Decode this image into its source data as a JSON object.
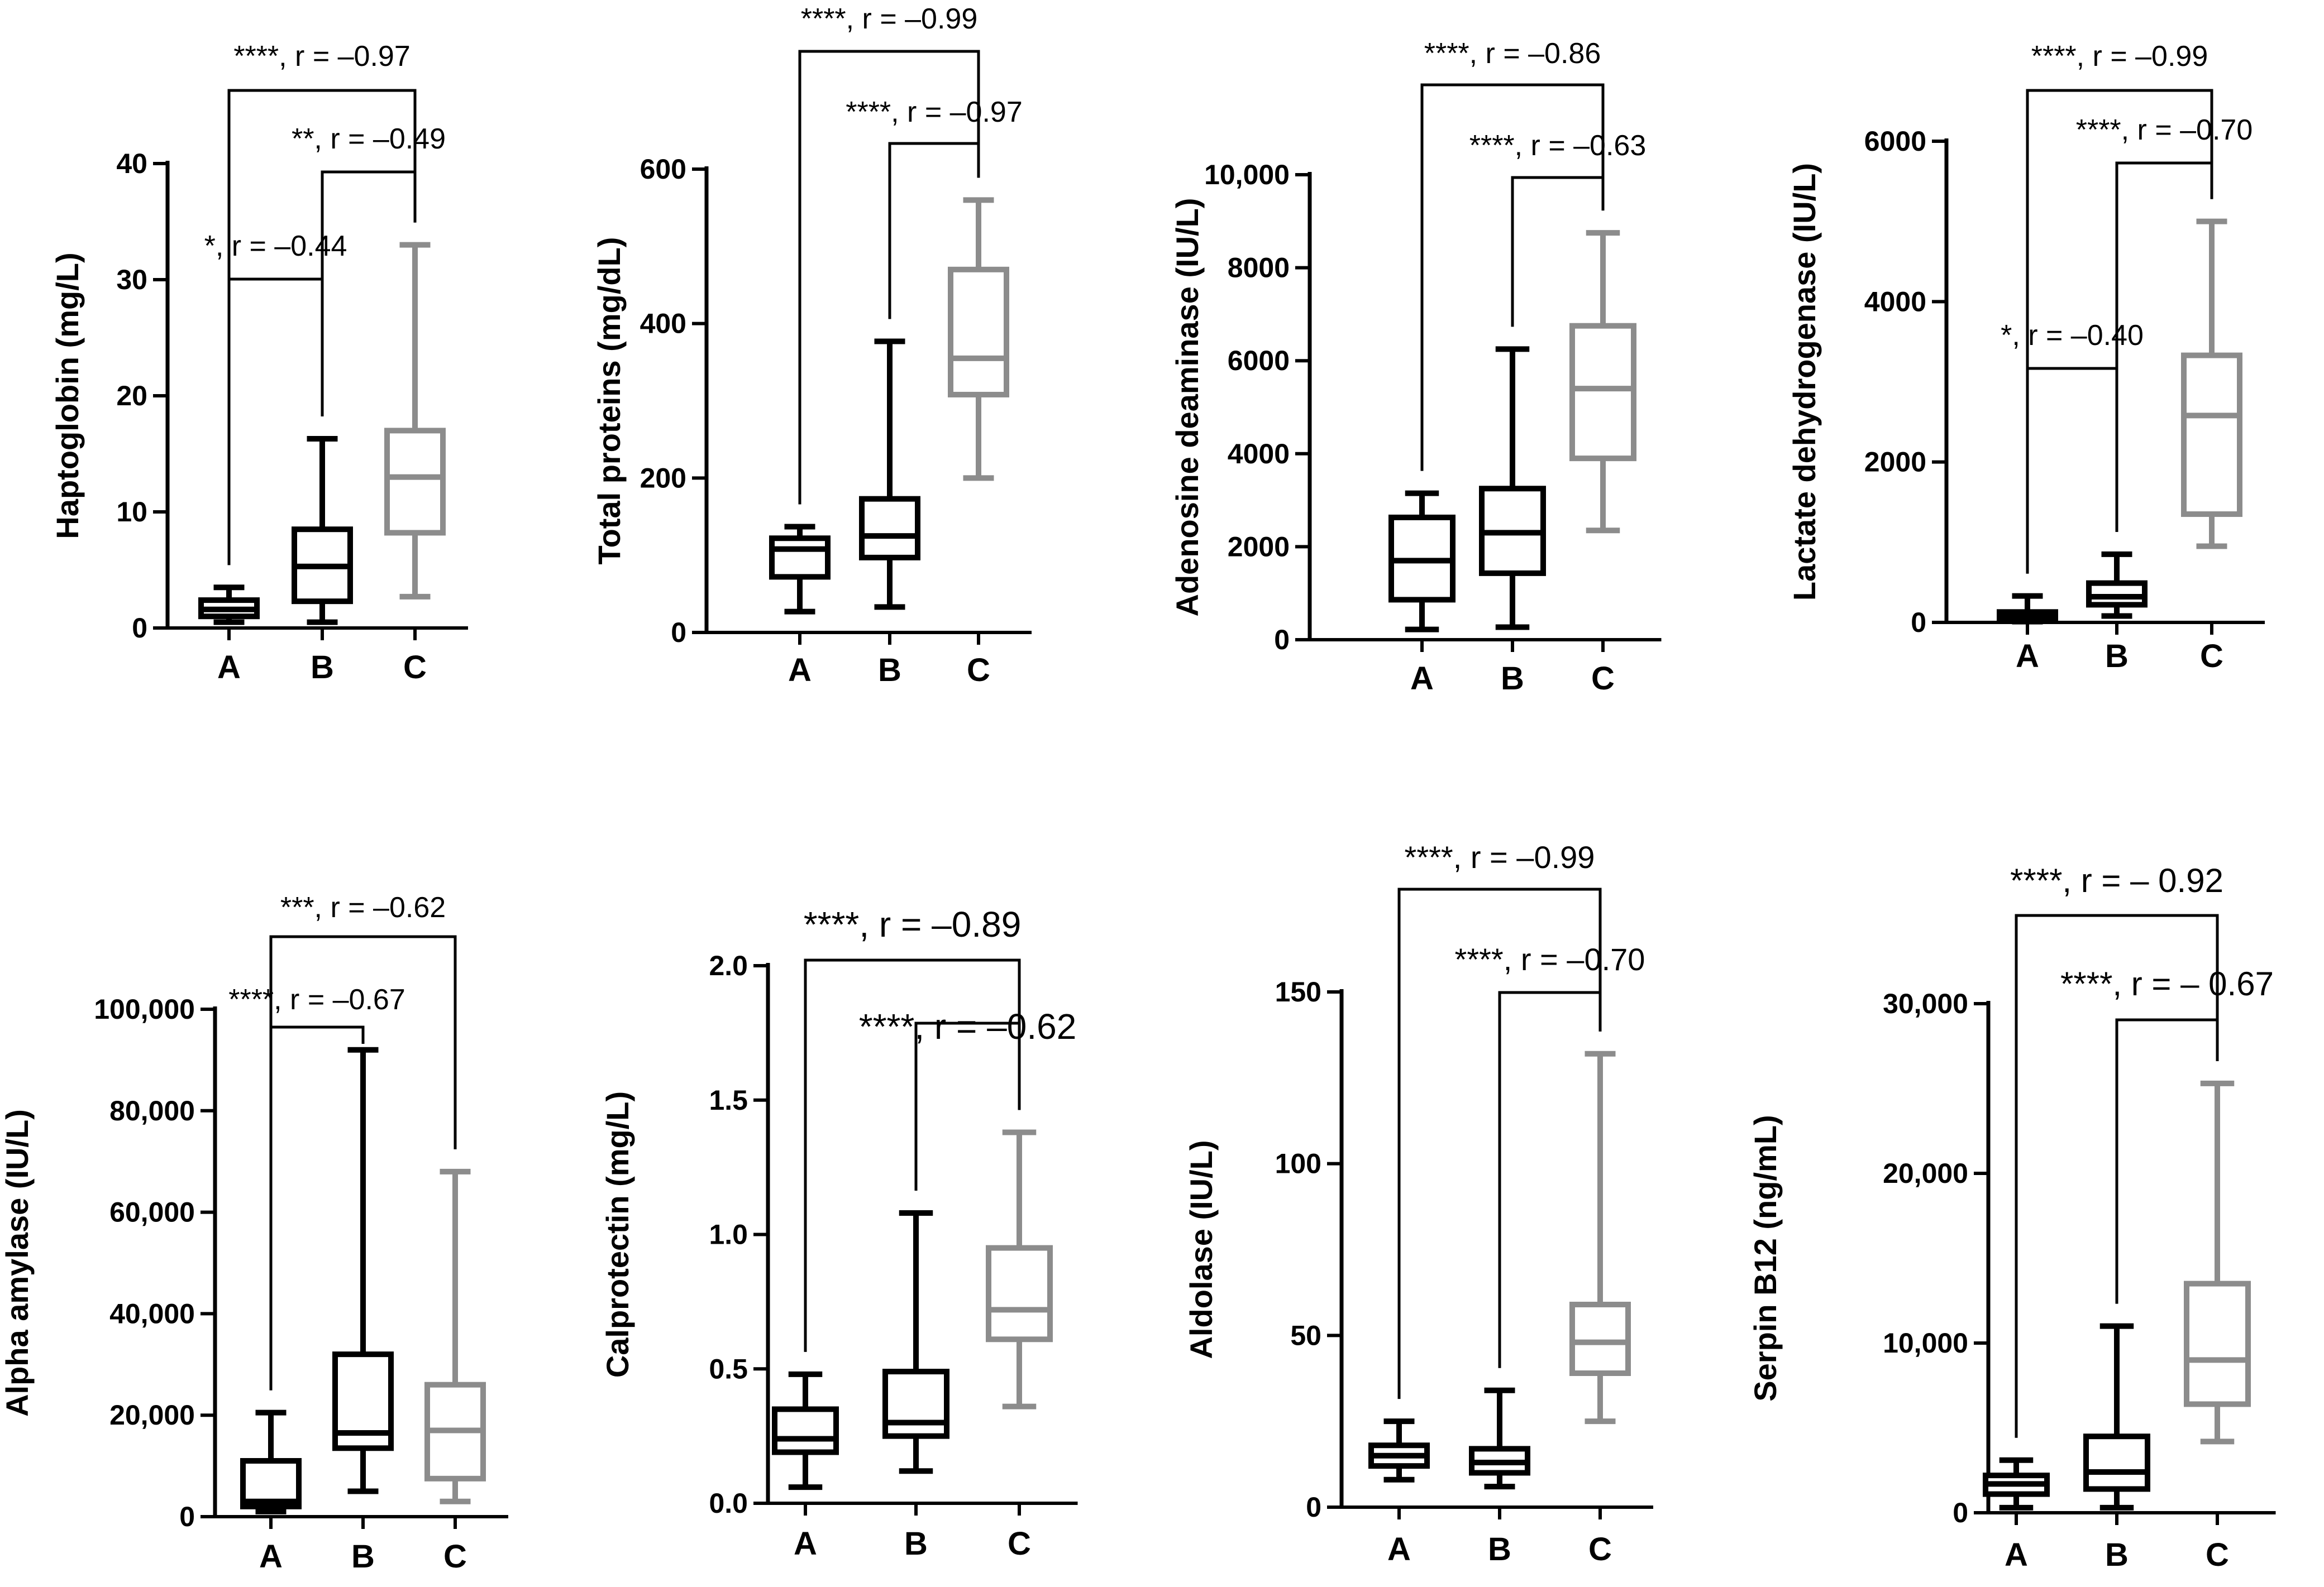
{
  "chart_data": [
    {
      "type": "box",
      "ylabel": "Haptoglobin (mg/L)",
      "categories": [
        "A",
        "B",
        "C"
      ],
      "ylim": [
        0,
        40
      ],
      "yticks": [
        0,
        10,
        20,
        30,
        40
      ],
      "ytick_labels": [
        "0",
        "10",
        "20",
        "30",
        "40"
      ],
      "boxes": [
        {
          "group": "A",
          "min": 0.5,
          "q1": 1.0,
          "median": 1.6,
          "q3": 2.4,
          "max": 3.5
        },
        {
          "group": "B",
          "min": 0.5,
          "q1": 2.3,
          "median": 5.3,
          "q3": 8.5,
          "max": 16.3
        },
        {
          "group": "C",
          "min": 2.7,
          "q1": 8.2,
          "median": 13.0,
          "q3": 17.0,
          "max": 33.0
        }
      ],
      "comparisons": [
        {
          "from": "A",
          "to": "C",
          "label": "****, r = –0.97"
        },
        {
          "from": "B",
          "to": "C",
          "label": "**, r = –0.49"
        },
        {
          "from": "A",
          "to": "B",
          "label": "*, r = –0.44"
        }
      ]
    },
    {
      "type": "box",
      "ylabel": "Total proteins (mg/dL)",
      "categories": [
        "A",
        "B",
        "C"
      ],
      "ylim": [
        0,
        600
      ],
      "yticks": [
        0,
        200,
        400,
        600
      ],
      "ytick_labels": [
        "0",
        "200",
        "400",
        "600"
      ],
      "boxes": [
        {
          "group": "A",
          "min": 27,
          "q1": 72,
          "median": 108,
          "q3": 122,
          "max": 137
        },
        {
          "group": "B",
          "min": 33,
          "q1": 97,
          "median": 125,
          "q3": 173,
          "max": 377
        },
        {
          "group": "C",
          "min": 200,
          "q1": 308,
          "median": 355,
          "q3": 470,
          "max": 560
        }
      ],
      "comparisons": [
        {
          "from": "A",
          "to": "C",
          "label": "****, r = –0.99"
        },
        {
          "from": "B",
          "to": "C",
          "label": "****, r = –0.97"
        }
      ]
    },
    {
      "type": "box",
      "ylabel": "Adenosine deaminase (IU/L)",
      "categories": [
        "A",
        "B",
        "C"
      ],
      "ylim": [
        0,
        10000
      ],
      "yticks": [
        0,
        2000,
        4000,
        6000,
        8000,
        10000
      ],
      "ytick_labels": [
        "0",
        "2000",
        "4000",
        "6000",
        "8000",
        "10,000"
      ],
      "boxes": [
        {
          "group": "A",
          "min": 220,
          "q1": 860,
          "median": 1700,
          "q3": 2630,
          "max": 3150
        },
        {
          "group": "B",
          "min": 270,
          "q1": 1430,
          "median": 2300,
          "q3": 3250,
          "max": 6250
        },
        {
          "group": "C",
          "min": 2350,
          "q1": 3900,
          "median": 5400,
          "q3": 6750,
          "max": 8750
        }
      ],
      "comparisons": [
        {
          "from": "A",
          "to": "C",
          "label": "****, r = –0.86"
        },
        {
          "from": "B",
          "to": "C",
          "label": "****, r = –0.63"
        }
      ]
    },
    {
      "type": "box",
      "ylabel": "Lactate dehydrogenase (IU/L)",
      "categories": [
        "A",
        "B",
        "C"
      ],
      "ylim": [
        0,
        6000
      ],
      "yticks": [
        0,
        2000,
        4000,
        6000
      ],
      "ytick_labels": [
        "0",
        "2000",
        "4000",
        "6000"
      ],
      "boxes": [
        {
          "group": "A",
          "min": 10,
          "q1": 40,
          "median": 70,
          "q3": 130,
          "max": 330
        },
        {
          "group": "B",
          "min": 80,
          "q1": 220,
          "median": 320,
          "q3": 490,
          "max": 850
        },
        {
          "group": "C",
          "min": 950,
          "q1": 1350,
          "median": 2580,
          "q3": 3330,
          "max": 5000
        }
      ],
      "comparisons": [
        {
          "from": "A",
          "to": "C",
          "label": "****, r = –0.99"
        },
        {
          "from": "B",
          "to": "C",
          "label": "****, r = –0.70"
        },
        {
          "from": "A",
          "to": "B",
          "label": "*, r = –0.40"
        }
      ]
    },
    {
      "type": "box",
      "ylabel": "Alpha amylase (IU/L)",
      "categories": [
        "A",
        "B",
        "C"
      ],
      "ylim": [
        0,
        100000
      ],
      "yticks": [
        0,
        20000,
        40000,
        60000,
        80000,
        100000
      ],
      "ytick_labels": [
        "0",
        "20,000",
        "40,000",
        "60,000",
        "80,000",
        "100,000"
      ],
      "boxes": [
        {
          "group": "A",
          "min": 1000,
          "q1": 2000,
          "median": 3000,
          "q3": 11000,
          "max": 20500
        },
        {
          "group": "B",
          "min": 5000,
          "q1": 13500,
          "median": 16500,
          "q3": 32000,
          "max": 92000
        },
        {
          "group": "C",
          "min": 3000,
          "q1": 7500,
          "median": 17000,
          "q3": 26000,
          "max": 68000
        }
      ],
      "comparisons": [
        {
          "from": "A",
          "to": "C",
          "label": "***, r = –0.62"
        },
        {
          "from": "A",
          "to": "B",
          "label": "****, r = –0.67"
        }
      ]
    },
    {
      "type": "box",
      "ylabel": "Calprotectin (mg/L)",
      "categories": [
        "A",
        "B",
        "C"
      ],
      "ylim": [
        0,
        2.0
      ],
      "yticks": [
        0,
        0.5,
        1.0,
        1.5,
        2.0
      ],
      "ytick_labels": [
        "0.0",
        "0.5",
        "1.0",
        "1.5",
        "2.0"
      ],
      "boxes": [
        {
          "group": "A",
          "min": 0.06,
          "q1": 0.19,
          "median": 0.24,
          "q3": 0.35,
          "max": 0.48
        },
        {
          "group": "B",
          "min": 0.12,
          "q1": 0.25,
          "median": 0.3,
          "q3": 0.49,
          "max": 1.08
        },
        {
          "group": "C",
          "min": 0.36,
          "q1": 0.61,
          "median": 0.72,
          "q3": 0.95,
          "max": 1.38
        }
      ],
      "comparisons": [
        {
          "from": "A",
          "to": "C",
          "label": "****, r = –0.89"
        },
        {
          "from": "B",
          "to": "C",
          "label": "****, r = –0.62"
        }
      ]
    },
    {
      "type": "box",
      "ylabel": "Aldolase (IU/L)",
      "categories": [
        "A",
        "B",
        "C"
      ],
      "ylim": [
        0,
        150
      ],
      "yticks": [
        0,
        50,
        100,
        150
      ],
      "ytick_labels": [
        "0",
        "50",
        "100",
        "150"
      ],
      "boxes": [
        {
          "group": "A",
          "min": 8,
          "q1": 12,
          "median": 15,
          "q3": 18,
          "max": 25
        },
        {
          "group": "B",
          "min": 6,
          "q1": 10,
          "median": 13,
          "q3": 17,
          "max": 34
        },
        {
          "group": "C",
          "min": 25,
          "q1": 39,
          "median": 48,
          "q3": 59,
          "max": 132
        }
      ],
      "comparisons": [
        {
          "from": "A",
          "to": "C",
          "label": "****, r = –0.99"
        },
        {
          "from": "B",
          "to": "C",
          "label": "****, r = –0.70"
        }
      ]
    },
    {
      "type": "box",
      "ylabel": "Serpin B12 (ng/mL)",
      "categories": [
        "A",
        "B",
        "C"
      ],
      "ylim": [
        0,
        30000
      ],
      "yticks": [
        0,
        10000,
        20000,
        30000
      ],
      "ytick_labels": [
        "0",
        "10,000",
        "20,000",
        "30,000"
      ],
      "boxes": [
        {
          "group": "A",
          "min": 300,
          "q1": 1100,
          "median": 1700,
          "q3": 2200,
          "max": 3100
        },
        {
          "group": "B",
          "min": 300,
          "q1": 1400,
          "median": 2400,
          "q3": 4500,
          "max": 11000
        },
        {
          "group": "C",
          "min": 4200,
          "q1": 6400,
          "median": 9000,
          "q3": 13500,
          "max": 25300
        }
      ],
      "comparisons": [
        {
          "from": "A",
          "to": "C",
          "label": "****, r = – 0.92"
        },
        {
          "from": "B",
          "to": "C",
          "label": "****, r = – 0.67"
        }
      ]
    }
  ],
  "colors": {
    "group_A": "#000000",
    "group_B": "#000000",
    "group_C": "#8c8c8c",
    "axis": "#000000"
  }
}
